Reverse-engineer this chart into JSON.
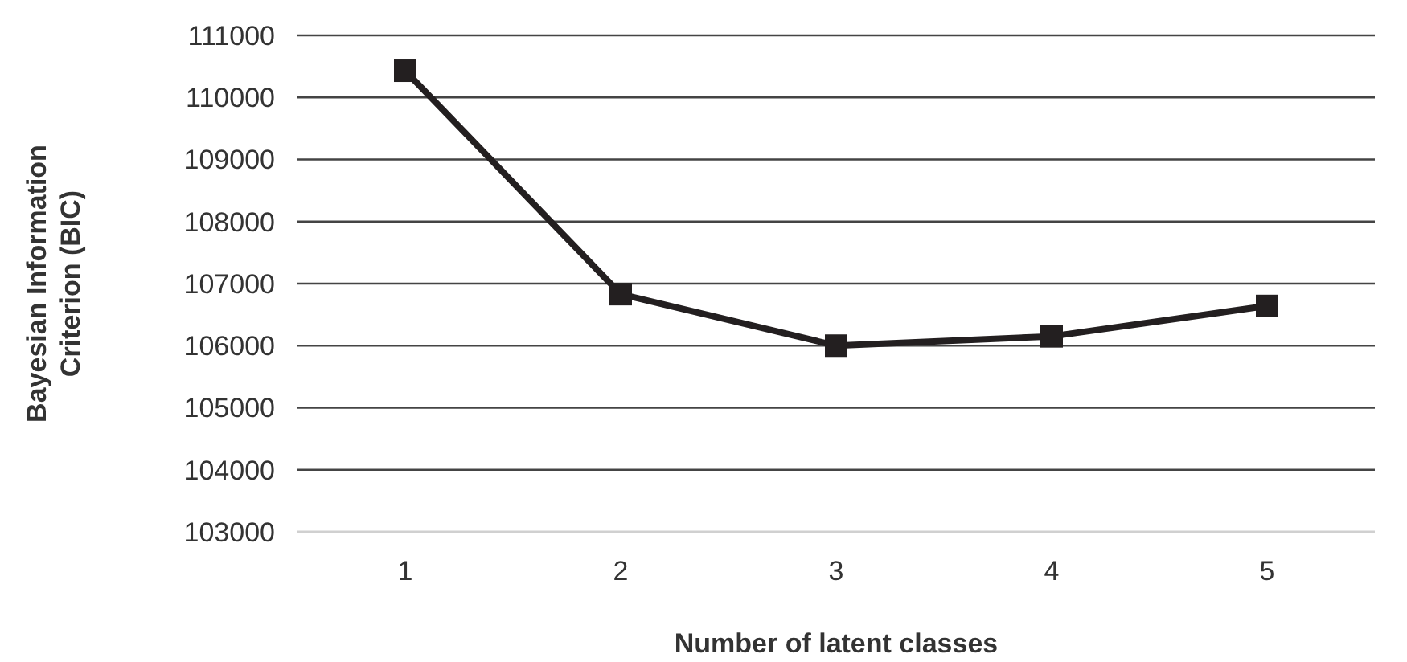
{
  "chart_data": {
    "type": "line",
    "xlabel": "Number of latent classes",
    "ylabel": "Bayesian Information Criterion (BIC)",
    "categories": [
      "1",
      "2",
      "3",
      "4",
      "5"
    ],
    "series": [
      {
        "color": "#231f20",
        "values": [
          110430,
          106830,
          106000,
          106150,
          106640
        ]
      }
    ],
    "ylim": [
      103000,
      111000
    ],
    "yticks": [
      103000,
      104000,
      105000,
      106000,
      107000,
      108000,
      109000,
      110000,
      111000
    ],
    "grid": "y",
    "marker": "square",
    "line_style": "solid"
  }
}
